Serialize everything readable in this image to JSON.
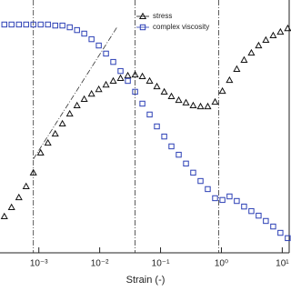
{
  "chart_data": {
    "type": "scatter",
    "x_label": "Strain (-)",
    "x_scale": "log",
    "xlim": [
      0.00023,
      13
    ],
    "ylim": [
      0,
      100
    ],
    "xticks": [
      {
        "value": 0.001,
        "label": "10⁻³"
      },
      {
        "value": 0.01,
        "label": "10⁻²"
      },
      {
        "value": 0.1,
        "label": "10⁻¹"
      },
      {
        "value": 1,
        "label": "10⁰"
      },
      {
        "value": 10,
        "label": "10¹"
      }
    ],
    "legend_position": "top-center",
    "x": [
      0.000271,
      0.000356,
      0.00047,
      0.000618,
      0.000813,
      0.00107,
      0.00141,
      0.00186,
      0.00244,
      0.00322,
      0.00424,
      0.00557,
      0.00734,
      0.00966,
      0.0127,
      0.0167,
      0.022,
      0.029,
      0.0382,
      0.0503,
      0.0662,
      0.0871,
      0.115,
      0.151,
      0.199,
      0.262,
      0.344,
      0.454,
      0.597,
      0.787,
      1.04,
      1.36,
      1.79,
      2.36,
      3.11,
      4.09,
      5.38,
      7.1,
      9.33,
      12.3
    ],
    "series": [
      {
        "name": "stress",
        "color": "#111111",
        "marker": "triangle",
        "values": [
          14.4,
          18.0,
          21.9,
          26.3,
          31.7,
          39.6,
          43.5,
          47.1,
          51.1,
          55.0,
          58.3,
          60.8,
          62.9,
          64.7,
          66.5,
          68.0,
          69.1,
          70.1,
          70.5,
          69.8,
          68.0,
          65.8,
          63.7,
          61.9,
          60.4,
          59.4,
          58.3,
          57.9,
          57.9,
          59.7,
          64.0,
          68.3,
          72.7,
          76.3,
          79.1,
          82.0,
          84.2,
          86.0,
          87.4,
          88.8
        ]
      },
      {
        "name": "complex viscosity",
        "color": "#2b3fb5",
        "marker": "square",
        "values": [
          90.3,
          90.3,
          90.3,
          90.3,
          90.3,
          90.3,
          90.3,
          89.9,
          89.9,
          89.2,
          88.1,
          86.7,
          84.5,
          82.0,
          78.8,
          75.5,
          71.9,
          68.0,
          63.7,
          59.0,
          54.7,
          50.0,
          46.0,
          42.1,
          38.8,
          35.3,
          31.7,
          28.4,
          25.2,
          21.6,
          20.9,
          22.3,
          20.5,
          18.3,
          16.5,
          14.7,
          12.6,
          10.4,
          7.9,
          5.8
        ]
      }
    ],
    "vertical_lines": [
      0.000813,
      0.0382,
      0.9
    ],
    "guide_line": {
      "x": [
        0.000813,
        0.0192
      ],
      "y": [
        37.1,
        89.2
      ]
    }
  }
}
